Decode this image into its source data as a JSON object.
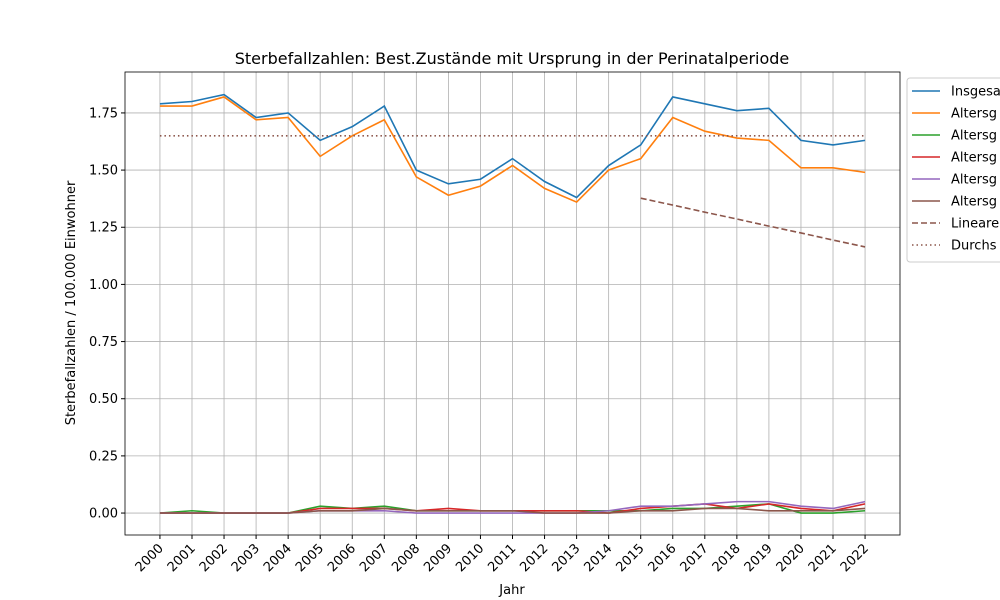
{
  "chart_data": {
    "type": "line",
    "title": "Sterbefallzahlen: Best.Zustände mit Ursprung in der Perinatalperiode",
    "xlabel": "Jahr",
    "ylabel": "Sterbefallzahlen / 100.000 Einwohner",
    "x": [
      2000,
      2001,
      2002,
      2003,
      2004,
      2005,
      2006,
      2007,
      2008,
      2009,
      2010,
      2011,
      2012,
      2013,
      2014,
      2015,
      2016,
      2017,
      2018,
      2019,
      2020,
      2021,
      2022
    ],
    "xlim": [
      1998.91,
      2023.09
    ],
    "xticks": [
      2000,
      2001,
      2002,
      2003,
      2004,
      2005,
      2006,
      2007,
      2008,
      2009,
      2010,
      2011,
      2012,
      2013,
      2014,
      2015,
      2016,
      2017,
      2018,
      2019,
      2020,
      2021,
      2022
    ],
    "ylim": [
      -0.096,
      1.929
    ],
    "yticks": [
      {
        "value": 0,
        "label": "0.00"
      },
      {
        "value": 0.25,
        "label": "0.25"
      },
      {
        "value": 0.5,
        "label": "0.50"
      },
      {
        "value": 0.75,
        "label": "0.75"
      },
      {
        "value": 1,
        "label": "1.00"
      },
      {
        "value": 1.25,
        "label": "1.25"
      },
      {
        "value": 1.5,
        "label": "1.50"
      },
      {
        "value": 1.75,
        "label": "1.75"
      }
    ],
    "grid": true,
    "legend": "outside right",
    "series": [
      {
        "name": "Insgesa",
        "color": "#1f77b4",
        "dash": "solid",
        "values": [
          1.79,
          1.8,
          1.83,
          1.73,
          1.75,
          1.63,
          1.69,
          1.78,
          1.5,
          1.44,
          1.46,
          1.55,
          1.45,
          1.38,
          1.52,
          1.61,
          1.82,
          1.79,
          1.76,
          1.77,
          1.63,
          1.61,
          1.63
        ]
      },
      {
        "name": "Altersg",
        "color": "#ff7f0e",
        "dash": "solid",
        "values": [
          1.78,
          1.78,
          1.82,
          1.72,
          1.73,
          1.56,
          1.65,
          1.72,
          1.47,
          1.39,
          1.43,
          1.52,
          1.42,
          1.36,
          1.5,
          1.55,
          1.73,
          1.67,
          1.64,
          1.63,
          1.51,
          1.51,
          1.49
        ]
      },
      {
        "name": "Altersg",
        "color": "#2ca02c",
        "dash": "solid",
        "values": [
          0,
          0.01,
          0,
          0,
          0,
          0.03,
          0.02,
          0.03,
          0.01,
          0.01,
          0.01,
          0.01,
          0.01,
          0.01,
          0.01,
          0.01,
          0.02,
          0.02,
          0.03,
          0.04,
          0,
          0,
          0.01
        ]
      },
      {
        "name": "Altersg",
        "color": "#d62728",
        "dash": "solid",
        "values": [
          0,
          0,
          0,
          0,
          0,
          0.02,
          0.02,
          0.02,
          0.01,
          0.02,
          0.01,
          0.01,
          0.01,
          0.01,
          0,
          0.02,
          0.03,
          0.04,
          0.02,
          0.04,
          0.02,
          0.01,
          0.04
        ]
      },
      {
        "name": "Altersg",
        "color": "#9467bd",
        "dash": "solid",
        "values": [
          0,
          0,
          0,
          0,
          0,
          0.01,
          0.01,
          0.01,
          0,
          0,
          0,
          0,
          0,
          0,
          0.01,
          0.03,
          0.03,
          0.04,
          0.05,
          0.05,
          0.03,
          0.02,
          0.05
        ]
      },
      {
        "name": "Altersg",
        "color": "#8c564b",
        "dash": "solid",
        "values": [
          0,
          0,
          0,
          0,
          0,
          0.01,
          0.01,
          0.02,
          0.01,
          0.01,
          0.01,
          0.01,
          0,
          0,
          0,
          0.01,
          0.01,
          0.02,
          0.02,
          0.01,
          0.01,
          0.01,
          0.02
        ]
      },
      {
        "name": "Lineare",
        "color": "#8c564b",
        "dash": "dashed",
        "values": [
          null,
          null,
          null,
          null,
          null,
          null,
          null,
          null,
          null,
          null,
          null,
          null,
          null,
          null,
          null,
          1.377,
          1.347,
          1.316,
          1.286,
          1.255,
          1.225,
          1.194,
          1.164
        ]
      },
      {
        "name": "Durchs",
        "color": "#8c564b",
        "dash": "dotted",
        "values": [
          1.65,
          1.65,
          1.65,
          1.65,
          1.65,
          1.65,
          1.65,
          1.65,
          1.65,
          1.65,
          1.65,
          1.65,
          1.65,
          1.65,
          1.65,
          1.65,
          1.65,
          1.65,
          1.65,
          1.65,
          1.65,
          1.65,
          1.65
        ]
      }
    ]
  }
}
